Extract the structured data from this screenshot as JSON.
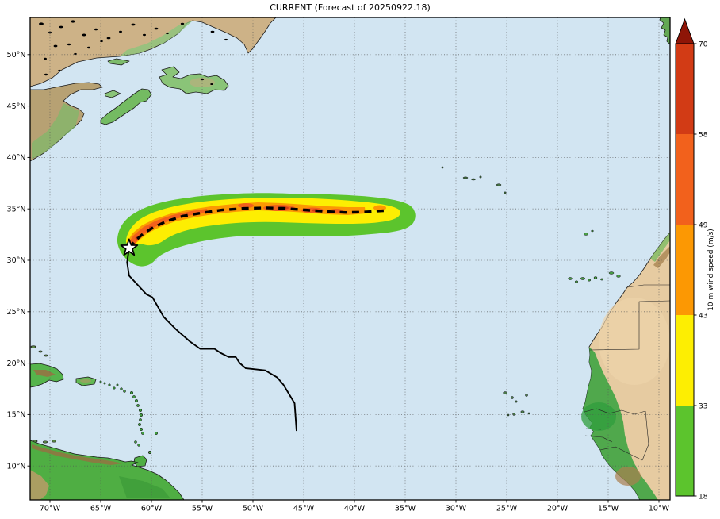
{
  "title": "CURRENT (Forecast of 20250922.18)",
  "axes": {
    "lon_ticks": [
      {
        "value": -70,
        "label": "70°W"
      },
      {
        "value": -65,
        "label": "65°W"
      },
      {
        "value": -60,
        "label": "60°W"
      },
      {
        "value": -55,
        "label": "55°W"
      },
      {
        "value": -50,
        "label": "50°W"
      },
      {
        "value": -45,
        "label": "45°W"
      },
      {
        "value": -40,
        "label": "40°W"
      },
      {
        "value": -35,
        "label": "35°W"
      },
      {
        "value": -30,
        "label": "30°W"
      },
      {
        "value": -25,
        "label": "25°W"
      },
      {
        "value": -20,
        "label": "20°W"
      },
      {
        "value": -15,
        "label": "15°W"
      },
      {
        "value": -10,
        "label": "10°W"
      }
    ],
    "lat_ticks": [
      {
        "value": 50,
        "label": "50°N"
      },
      {
        "value": 45,
        "label": "45°N"
      },
      {
        "value": 40,
        "label": "40°N"
      },
      {
        "value": 35,
        "label": "35°N"
      },
      {
        "value": 30,
        "label": "30°N"
      },
      {
        "value": 25,
        "label": "25°N"
      },
      {
        "value": 20,
        "label": "20°N"
      },
      {
        "value": 15,
        "label": "15°N"
      },
      {
        "value": 10,
        "label": "10°N"
      }
    ]
  },
  "colorbar": {
    "label": "10 m wind speed (m/s)",
    "tick_values": [
      18,
      33,
      43,
      49,
      58,
      70
    ],
    "segment_colors": [
      "#5cc42d",
      "#fdee02",
      "#fc9803",
      "#f2611c",
      "#d23b15"
    ],
    "over_arrow_color": "#8e1507"
  },
  "storm": {
    "marker": "star",
    "current_position": {
      "lon": -62.2,
      "lat": 31.2
    },
    "past_track": [
      [
        -45.7,
        13.4
      ],
      [
        -45.9,
        16.1
      ],
      [
        -47.0,
        17.9
      ],
      [
        -47.6,
        18.6
      ],
      [
        -48.8,
        19.3
      ],
      [
        -50.7,
        19.5
      ],
      [
        -51.3,
        20.0
      ],
      [
        -51.7,
        20.6
      ],
      [
        -52.4,
        20.6
      ],
      [
        -53.2,
        21.0
      ],
      [
        -53.8,
        21.4
      ],
      [
        -55.2,
        21.4
      ],
      [
        -56.2,
        22.1
      ],
      [
        -57.6,
        23.3
      ],
      [
        -58.8,
        24.5
      ],
      [
        -59.9,
        26.4
      ],
      [
        -60.5,
        26.7
      ],
      [
        -62.2,
        28.5
      ],
      [
        -62.4,
        29.8
      ],
      [
        -62.2,
        31.2
      ]
    ],
    "forecast_track": [
      [
        -62.2,
        31.2
      ],
      [
        -61.6,
        31.9
      ],
      [
        -60.8,
        32.6
      ],
      [
        -59.8,
        33.2
      ],
      [
        -58.5,
        33.8
      ],
      [
        -56.9,
        34.3
      ],
      [
        -55.1,
        34.6
      ],
      [
        -53.0,
        34.9
      ],
      [
        -50.9,
        35.05
      ],
      [
        -48.8,
        35.1
      ],
      [
        -46.9,
        35.05
      ],
      [
        -44.9,
        34.9
      ],
      [
        -42.9,
        34.75
      ],
      [
        -40.9,
        34.65
      ],
      [
        -39.0,
        34.7
      ],
      [
        -37.5,
        34.8
      ],
      [
        -36.6,
        34.85
      ]
    ],
    "wind_swath_bands": [
      {
        "min_speed": 18,
        "color": "#5cc42d"
      },
      {
        "min_speed": 33,
        "color": "#fdee02"
      },
      {
        "min_speed": 43,
        "color": "#fc9803"
      },
      {
        "min_speed": 49,
        "color": "#f2611c"
      },
      {
        "min_speed": 58,
        "color": "#d23b15"
      }
    ]
  },
  "map_colors": {
    "ocean": "#d2e5f2",
    "land_tan": "#cdb287",
    "land_green": "#4fae43",
    "sahara": "#e6cba1",
    "grid": "#555555",
    "track": "#000000"
  }
}
